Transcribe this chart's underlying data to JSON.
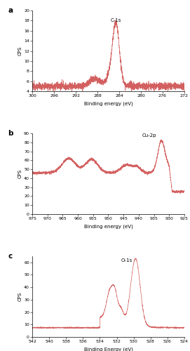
{
  "panel_a": {
    "label": "a",
    "xlabel": "Binding energy (eV)",
    "ylabel": "CPS",
    "annotation": "C-1s",
    "xlim": [
      300,
      272
    ],
    "ylim": [
      4,
      20
    ],
    "yticks": [
      4,
      6,
      8,
      10,
      12,
      14,
      16,
      18,
      20
    ],
    "xticks": [
      300,
      296,
      292,
      288,
      284,
      280,
      276,
      272
    ],
    "color": "#cc4444"
  },
  "panel_b": {
    "label": "b",
    "xlabel": "Binding energy (eV)",
    "ylabel": "CPS",
    "annotation": "Cu-2p",
    "xlim": [
      975,
      925
    ],
    "ylim": [
      0,
      90
    ],
    "yticks": [
      0,
      10,
      20,
      30,
      40,
      50,
      60,
      70,
      80,
      90
    ],
    "xticks": [
      975,
      970,
      965,
      960,
      955,
      950,
      945,
      940,
      935,
      930,
      925
    ],
    "color": "#cc4444"
  },
  "panel_c": {
    "label": "c",
    "xlabel": "Binding Energy (eV)",
    "ylabel": "CPS",
    "annotation": "O-1s",
    "xlim": [
      542,
      524
    ],
    "ylim": [
      0,
      65
    ],
    "yticks": [
      0,
      10,
      20,
      30,
      40,
      50,
      60
    ],
    "xticks": [
      542,
      540,
      538,
      536,
      534,
      532,
      530,
      528,
      526,
      524
    ],
    "color": "#cc4444"
  },
  "bg_color": "#ffffff",
  "tick_label_fontsize": 4.5,
  "axis_label_fontsize": 5.0,
  "annotation_fontsize": 5.0,
  "panel_label_fontsize": 7.5
}
